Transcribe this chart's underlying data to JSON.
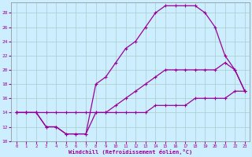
{
  "xlabel": "Windchill (Refroidissement éolien,°C)",
  "bg_color": "#cceeff",
  "line_color": "#990099",
  "grid_color": "#aacccc",
  "xlim": [
    -0.5,
    23.5
  ],
  "ylim": [
    10,
    29.5
  ],
  "xticks": [
    0,
    1,
    2,
    3,
    4,
    5,
    6,
    7,
    8,
    9,
    10,
    11,
    12,
    13,
    14,
    15,
    16,
    17,
    18,
    19,
    20,
    21,
    22,
    23
  ],
  "yticks": [
    10,
    12,
    14,
    16,
    18,
    20,
    22,
    24,
    26,
    28
  ],
  "line1_x": [
    0,
    1,
    2,
    3,
    4,
    5,
    6,
    7,
    8,
    9,
    10,
    11,
    12,
    13,
    14,
    15,
    16,
    17,
    18,
    19,
    20,
    21,
    22,
    23
  ],
  "line1_y": [
    14,
    14,
    14,
    14,
    14,
    14,
    14,
    14,
    14,
    14,
    14,
    14,
    14,
    14,
    15,
    15,
    15,
    15,
    16,
    16,
    16,
    16,
    17,
    17
  ],
  "line2_x": [
    0,
    1,
    2,
    3,
    4,
    5,
    6,
    7,
    8,
    9,
    10,
    11,
    12,
    13,
    14,
    15,
    16,
    17,
    18,
    19,
    20,
    21,
    22,
    23
  ],
  "line2_y": [
    14,
    14,
    14,
    12,
    12,
    11,
    11,
    11,
    14,
    14,
    15,
    16,
    17,
    18,
    19,
    20,
    20,
    20,
    20,
    20,
    20,
    21,
    20,
    17
  ],
  "line3_x": [
    0,
    1,
    2,
    3,
    4,
    5,
    6,
    7,
    8,
    9,
    10,
    11,
    12,
    13,
    14,
    15,
    16,
    17,
    18,
    19,
    20,
    21,
    22,
    23
  ],
  "line3_y": [
    14,
    14,
    14,
    12,
    12,
    11,
    11,
    11,
    18,
    19,
    21,
    23,
    24,
    26,
    28,
    29,
    29,
    29,
    29,
    28,
    26,
    22,
    20,
    17
  ],
  "marker": "+",
  "markersize": 3.5,
  "linewidth": 0.9
}
